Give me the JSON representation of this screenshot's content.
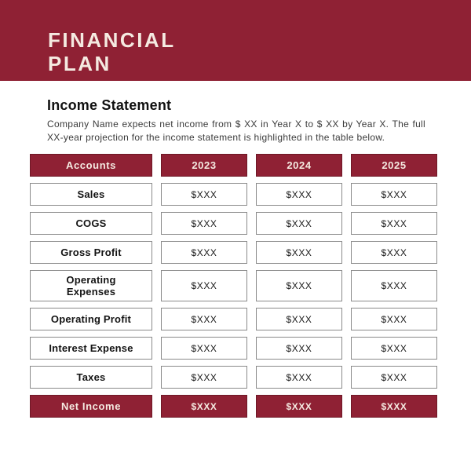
{
  "colors": {
    "maroon": "#8F2134",
    "cream": "#F5EAE1",
    "cell_border": "#8A8A8A"
  },
  "banner": {
    "title_line1": "FINANCIAL",
    "title_line2": "PLAN"
  },
  "section": {
    "heading": "Income Statement",
    "description": "Company Name expects net income from $ XX in Year X to $ XX by Year X. The full XX-year projection for the income statement is highlighted in the table below."
  },
  "table": {
    "header": [
      "Accounts",
      "2023",
      "2024",
      "2025"
    ],
    "rows": [
      {
        "account": "Sales",
        "values": [
          "$XXX",
          "$XXX",
          "$XXX"
        ],
        "highlight": false
      },
      {
        "account": "COGS",
        "values": [
          "$XXX",
          "$XXX",
          "$XXX"
        ],
        "highlight": false
      },
      {
        "account": "Gross Profit",
        "values": [
          "$XXX",
          "$XXX",
          "$XXX"
        ],
        "highlight": false
      },
      {
        "account": "Operating\nExpenses",
        "values": [
          "$XXX",
          "$XXX",
          "$XXX"
        ],
        "highlight": false
      },
      {
        "account": "Operating Profit",
        "values": [
          "$XXX",
          "$XXX",
          "$XXX"
        ],
        "highlight": false
      },
      {
        "account": "Interest Expense",
        "values": [
          "$XXX",
          "$XXX",
          "$XXX"
        ],
        "highlight": false
      },
      {
        "account": "Taxes",
        "values": [
          "$XXX",
          "$XXX",
          "$XXX"
        ],
        "highlight": false
      },
      {
        "account": "Net Income",
        "values": [
          "$XXX",
          "$XXX",
          "$XXX"
        ],
        "highlight": true
      }
    ]
  }
}
